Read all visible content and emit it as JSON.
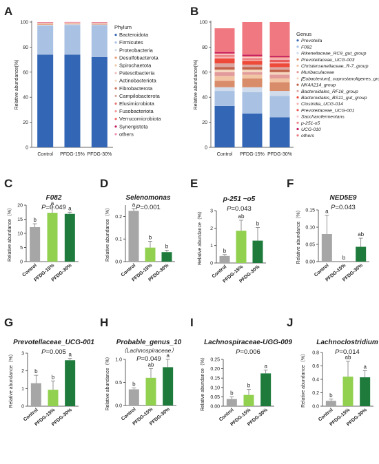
{
  "colors": {
    "control": "#a6a6a6",
    "pfdg15": "#92d050",
    "pfdg30": "#1e7b3c",
    "err": "#777777",
    "axis": "#333333",
    "sig": "#222222"
  },
  "panels": {
    "A": "A",
    "B": "B",
    "C": "C",
    "D": "D",
    "E": "E",
    "F": "F",
    "G": "G",
    "H": "H",
    "I": "I",
    "J": "J"
  },
  "chart_data": [
    {
      "id": "A",
      "type": "bar",
      "stacked": true,
      "categories": [
        "Control",
        "PFDG-15%",
        "PFDG-30%"
      ],
      "ylabel": "Relative abundance(%)",
      "ylim": [
        0,
        100
      ],
      "yticks": [
        0,
        20,
        40,
        60,
        80,
        100
      ],
      "legend_title": "Phylum",
      "series": [
        {
          "name": "Bacteroidota",
          "color": "#3366b5",
          "values": [
            74,
            74,
            72
          ]
        },
        {
          "name": "Firmicutes",
          "color": "#a9c1e3",
          "values": [
            23,
            23.6,
            25.5
          ]
        },
        {
          "name": "Proteobacteria",
          "color": "#cfdcec",
          "values": [
            0.8,
            0.6,
            0.5
          ]
        },
        {
          "name": "Desulfobacterota",
          "color": "#e89a74",
          "values": [
            0.5,
            0.4,
            0.4
          ]
        },
        {
          "name": "Spirochaetota",
          "color": "#f3c7a8",
          "values": [
            0.3,
            0.2,
            0.2
          ]
        },
        {
          "name": "Patescibacteria",
          "color": "#efbfbf",
          "values": [
            0.2,
            0.2,
            0.2
          ]
        },
        {
          "name": "Actinobacteriota",
          "color": "#f4d9c2",
          "values": [
            0.2,
            0.2,
            0.2
          ]
        },
        {
          "name": "Fibrobacterota",
          "color": "#c96b4f",
          "values": [
            0.2,
            0.1,
            0.2
          ]
        },
        {
          "name": "Campilobacterota",
          "color": "#d9a8a0",
          "values": [
            0.1,
            0.1,
            0.1
          ]
        },
        {
          "name": "Elusimicrobiota",
          "color": "#e57373",
          "values": [
            0.1,
            0.1,
            0.1
          ]
        },
        {
          "name": "Fusobacteriota",
          "color": "#ef9a9a",
          "values": [
            0.1,
            0.1,
            0.1
          ]
        },
        {
          "name": "Verrucomicrobiota",
          "color": "#f06a6a",
          "values": [
            0.1,
            0.1,
            0.1
          ]
        },
        {
          "name": "Synergistota",
          "color": "#c2185b",
          "values": [
            0.1,
            0.1,
            0.1
          ]
        },
        {
          "name": "others",
          "color": "#f48fb1",
          "values": [
            0.3,
            0.3,
            0.3
          ]
        }
      ]
    },
    {
      "id": "B",
      "type": "bar",
      "stacked": true,
      "categories": [
        "Control",
        "PFDG-15%",
        "PFDG-30%"
      ],
      "ylabel": "Relative abundance(%)",
      "ylim": [
        0,
        100
      ],
      "yticks": [
        0,
        20,
        40,
        60,
        80,
        100
      ],
      "legend_title": "Genus",
      "series": [
        {
          "name": "Prevotella",
          "color": "#3366b5",
          "values": [
            33,
            27,
            24
          ]
        },
        {
          "name": "F082",
          "color": "#a9c1e3",
          "values": [
            12,
            17,
            17
          ]
        },
        {
          "name": "Rikenellaceae_RC9_gut_group",
          "color": "#d0dbec",
          "values": [
            3,
            4,
            4
          ]
        },
        {
          "name": "Prevotellaceae_UCG-003",
          "color": "#d98c6a",
          "values": [
            5,
            7,
            7
          ]
        },
        {
          "name": "Christensenellaceae_R-7_group",
          "color": "#f1c4a4",
          "values": [
            4,
            3,
            3
          ]
        },
        {
          "name": "Muribaculaceae",
          "color": "#e29a9a",
          "values": [
            3,
            2,
            3
          ]
        },
        {
          "name": "[Eubacterium]_coprostanoligenes_group",
          "color": "#f4d6bf",
          "values": [
            2,
            2,
            2
          ]
        },
        {
          "name": "NK4A214_group",
          "color": "#c0614a",
          "values": [
            2,
            2,
            2
          ]
        },
        {
          "name": "Bacteroidales_RF16_group",
          "color": "#dca7a0",
          "values": [
            3,
            2,
            2
          ]
        },
        {
          "name": "Bacteroidales_BS11_gut_group",
          "color": "#ee4a3a",
          "values": [
            4,
            3,
            3
          ]
        },
        {
          "name": "Clostridia_UCG-014",
          "color": "#f5b3b3",
          "values": [
            1.5,
            1,
            1
          ]
        },
        {
          "name": "Prevotellaceae_UCG-001",
          "color": "#e95c5c",
          "values": [
            1,
            1,
            2
          ]
        },
        {
          "name": "Saccharofermentans",
          "color": "#f7c9c9",
          "values": [
            1,
            1,
            1
          ]
        },
        {
          "name": "p-251-o5",
          "color": "#f08080",
          "values": [
            0.5,
            1,
            1
          ]
        },
        {
          "name": "UCG-010",
          "color": "#c2185b",
          "values": [
            1,
            1,
            1
          ]
        },
        {
          "name": "others",
          "color": "#f07880",
          "values": [
            19,
            26,
            27
          ]
        }
      ]
    },
    {
      "id": "C",
      "type": "bar",
      "title": "F082",
      "p_value": "=0.049",
      "categories": [
        "Control",
        "PFDG-15%",
        "PFDG-30%"
      ],
      "values": [
        12.2,
        17.3,
        16.9
      ],
      "errors": [
        1.2,
        2.0,
        0.6
      ],
      "letters": [
        "b",
        "a",
        "a"
      ],
      "ylabel": "Relative abundance（%）",
      "ylim": [
        0,
        20
      ],
      "yticks": [
        0,
        5,
        10,
        15,
        20
      ],
      "ytick_labels": [
        "0",
        "5",
        "10",
        "15",
        "20"
      ]
    },
    {
      "id": "D",
      "type": "bar",
      "title": "Selenomonas",
      "p_value": "=0.001",
      "categories": [
        "Control",
        "PFDG-15%",
        "PFDG-30%"
      ],
      "values": [
        0.225,
        0.062,
        0.042
      ],
      "errors": [
        0.01,
        0.028,
        0.008
      ],
      "letters": [
        "a",
        "b",
        "b"
      ],
      "ylabel": "Relative abundance（%）",
      "ylim": [
        0,
        0.25
      ],
      "yticks": [
        0,
        0.1,
        0.2
      ],
      "ytick_labels": [
        "0.0",
        "0.1",
        "0.2"
      ]
    },
    {
      "id": "E",
      "type": "bar",
      "title": "p-251 −o5",
      "p_value": "=0.043",
      "categories": [
        "Control",
        "PFDG-15%",
        "PFDG-30%"
      ],
      "values": [
        0.4,
        1.85,
        1.28
      ],
      "errors": [
        0.08,
        0.6,
        0.75
      ],
      "letters": [
        "b",
        "ab",
        "b"
      ],
      "ylabel": "Relative abundance（%）",
      "ylim": [
        0,
        3
      ],
      "yticks": [
        0,
        1,
        2,
        3
      ],
      "ytick_labels": [
        "0",
        "1",
        "2",
        "3"
      ]
    },
    {
      "id": "F",
      "type": "bar",
      "title": "NED5E9",
      "p_value": "=0.043",
      "categories": [
        "Control",
        "PFDG-15%",
        "PFDG-30%"
      ],
      "values": [
        0.08,
        0.0,
        0.043
      ],
      "errors": [
        0.055,
        0,
        0.025
      ],
      "letters": [
        "a",
        "b",
        "ab"
      ],
      "ylabel": "Relative abundance（%）",
      "ylim": [
        0,
        0.15
      ],
      "yticks": [
        0,
        0.05,
        0.1,
        0.15
      ],
      "ytick_labels": [
        "0.00",
        "0.05",
        "0.10",
        "0.15"
      ]
    },
    {
      "id": "G",
      "type": "bar",
      "title": "Prevotellaceae_UCG-001",
      "p_value": "=0.005",
      "categories": [
        "Control",
        "PFDG-15%",
        "PFDG-30%"
      ],
      "values": [
        1.3,
        0.93,
        2.6
      ],
      "errors": [
        0.45,
        0.5,
        0.1
      ],
      "letters": [
        "b",
        "b",
        "a"
      ],
      "ylabel": "Relative abundance（%）",
      "ylim": [
        0,
        3
      ],
      "yticks": [
        0,
        1,
        2,
        3
      ],
      "ytick_labels": [
        "0",
        "1",
        "2",
        "3"
      ]
    },
    {
      "id": "H",
      "type": "bar",
      "title": "Probable_genus_10",
      "subtitle": "（Lachnospiraceae）",
      "p_value": "=0.049",
      "categories": [
        "Control",
        "PFDG-15%",
        "PFDG-30%"
      ],
      "values": [
        0.35,
        0.6,
        0.83
      ],
      "errors": [
        0.03,
        0.2,
        0.17
      ],
      "letters": [
        "b",
        "ab",
        "a"
      ],
      "ylabel": "Relative abundance（%）",
      "ylim": [
        0,
        1.0
      ],
      "yticks": [
        0,
        0.5,
        1.0
      ],
      "ytick_labels": [
        "0.0",
        "0.5",
        "1.0"
      ]
    },
    {
      "id": "I",
      "type": "bar",
      "title": "Lachnospiraceae-UGG-009",
      "p_value": "=0.006",
      "categories": [
        "Control",
        "PFDG-15%",
        "PFDG-30%"
      ],
      "values": [
        0.038,
        0.06,
        0.175
      ],
      "errors": [
        0.012,
        0.03,
        0.018
      ],
      "letters": [
        "b",
        "b",
        "a"
      ],
      "ylabel": "Relative abundance（%）",
      "ylim": [
        0,
        0.25
      ],
      "yticks": [
        0,
        0.05,
        0.1,
        0.15,
        0.2,
        0.25
      ],
      "ytick_labels": [
        "0.00",
        "0.05",
        "0.10",
        "0.15",
        "0.20",
        "0.25"
      ]
    },
    {
      "id": "J",
      "type": "bar",
      "title": "Lachnoclostridium",
      "p_value": "=0.014",
      "categories": [
        "Control",
        "PFDG-15%",
        "PFDG-30%"
      ],
      "values": [
        0.08,
        0.44,
        0.43
      ],
      "errors": [
        0.025,
        0.23,
        0.1
      ],
      "letters": [
        "b",
        "ab",
        "a"
      ],
      "ylabel": "Relative abundance（%）",
      "ylim": [
        0,
        0.8
      ],
      "yticks": [
        0,
        0.2,
        0.4,
        0.6,
        0.8
      ],
      "ytick_labels": [
        "0.0",
        "0.2",
        "0.4",
        "0.6",
        "0.8"
      ]
    }
  ]
}
